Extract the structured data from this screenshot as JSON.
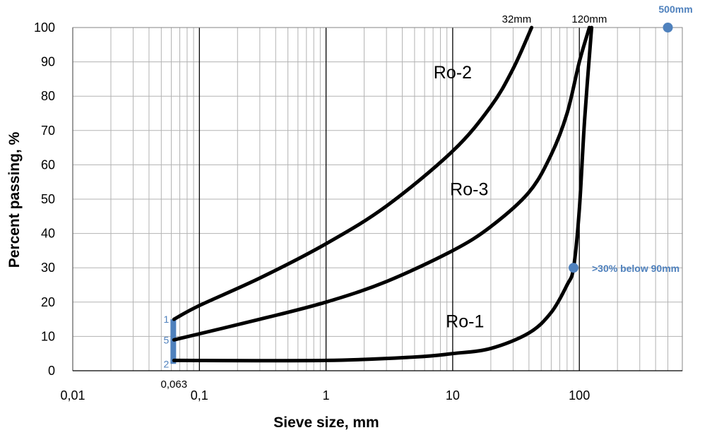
{
  "chart_data": {
    "type": "line",
    "xlabel": "Sieve size, mm",
    "ylabel": "Percent passing, %",
    "x_scale": "log",
    "xlim": [
      0.01,
      500
    ],
    "ylim": [
      0,
      100
    ],
    "x_ticks": [
      {
        "value": 0.01,
        "label": "0,01"
      },
      {
        "value": 0.1,
        "label": "0,1"
      },
      {
        "value": 1,
        "label": "1"
      },
      {
        "value": 10,
        "label": "10"
      },
      {
        "value": 100,
        "label": "100"
      }
    ],
    "y_ticks": [
      0,
      10,
      20,
      30,
      40,
      50,
      60,
      70,
      80,
      90,
      100
    ],
    "grid": true,
    "series": [
      {
        "name": "Ro-1",
        "color": "#000000",
        "x": [
          0.063,
          1,
          5,
          10,
          20,
          40,
          60,
          80,
          90,
          100,
          110,
          125
        ],
        "y": [
          3,
          3,
          4,
          5,
          6.5,
          11,
          17,
          25,
          30,
          47,
          73,
          100
        ]
      },
      {
        "name": "Ro-2",
        "color": "#000000",
        "x": [
          0.063,
          0.1,
          0.3,
          1,
          3,
          10,
          20,
          30,
          42
        ],
        "y": [
          15,
          19,
          27,
          37,
          48,
          64,
          77,
          88,
          100
        ]
      },
      {
        "name": "Ro-3",
        "color": "#000000",
        "x": [
          0.063,
          0.3,
          1,
          3,
          10,
          20,
          40,
          60,
          80,
          100,
          120
        ],
        "y": [
          9,
          15,
          20,
          26,
          35,
          42,
          52,
          63,
          75,
          90,
          100
        ]
      }
    ],
    "curve_labels": [
      {
        "text": "Ro-2",
        "x": 10,
        "y": 87
      },
      {
        "text": "Ro-3",
        "x": 13.5,
        "y": 53
      },
      {
        "text": "Ro-1",
        "x": 12.5,
        "y": 14.5
      }
    ],
    "top_labels": [
      {
        "text": "32mm",
        "x": 32
      },
      {
        "text": "120mm",
        "x": 120
      }
    ],
    "x_min_note": {
      "text": "0,063",
      "x": 0.063
    },
    "markers": [
      {
        "x": 500,
        "y": 100,
        "text": "500mm"
      },
      {
        "x": 90,
        "y": 30,
        "text": ">30% below 90mm"
      }
    ],
    "range_bar": {
      "x": 0.063,
      "y_from": 2,
      "y_to": 15,
      "labels": [
        {
          "text": "1",
          "y": 15
        },
        {
          "text": "5",
          "y": 9
        },
        {
          "text": "2",
          "y": 2
        }
      ]
    },
    "accent_color": "#4F81BD"
  }
}
